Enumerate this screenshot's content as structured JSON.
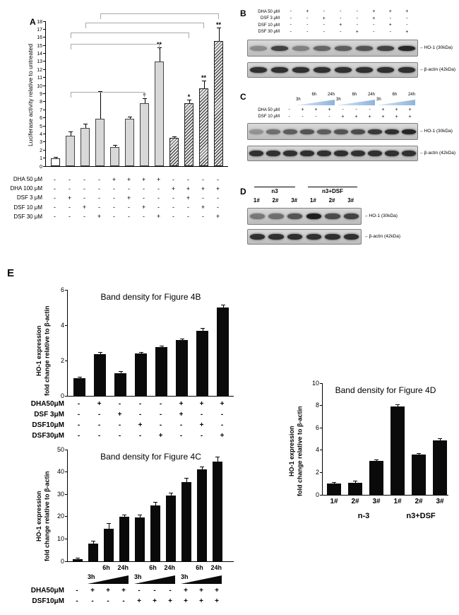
{
  "figure": {
    "panel_a": {
      "label": "A",
      "ylabel": "Luciferase activity relative to untreated",
      "chart": {
        "type": "bar",
        "ylim": [
          0,
          18
        ],
        "yticks": [
          0,
          1,
          2,
          3,
          4,
          5,
          6,
          7,
          8,
          9,
          10,
          11,
          12,
          13,
          14,
          15,
          16,
          17,
          18
        ],
        "values": [
          1,
          3.8,
          4.7,
          5.9,
          2.4,
          5.9,
          7.8,
          13,
          3.5,
          7.8,
          9.7,
          15.5
        ],
        "errors": [
          0.08,
          0.45,
          0.5,
          3.3,
          0.15,
          0.2,
          0.5,
          1.7,
          0.12,
          0.4,
          0.8,
          1.6
        ],
        "sig": [
          "",
          "",
          "",
          "",
          "",
          "",
          "*",
          "**",
          "",
          "*",
          "**",
          "**"
        ],
        "styles": [
          "white",
          "gray",
          "gray",
          "gray",
          "gray",
          "gray",
          "gray",
          "gray",
          "hatch",
          "hatch",
          "hatch",
          "hatch"
        ],
        "brackets": [
          {
            "from": 1,
            "to": 6,
            "y": 9.2
          },
          {
            "from": 1,
            "to": 7,
            "y": 15.2
          },
          {
            "from": 1,
            "to": 9,
            "y": 16.6
          },
          {
            "from": 2,
            "to": 10,
            "y": 17.8
          },
          {
            "from": 3,
            "to": 11,
            "y": 19.0
          }
        ]
      },
      "matrix": {
        "rows": [
          {
            "label": "DHA 50 μM",
            "values": [
              "-",
              "-",
              "-",
              "-",
              "+",
              "+",
              "+",
              "+",
              "-",
              "-",
              "-",
              "-"
            ]
          },
          {
            "label": "DHA 100 μM",
            "values": [
              "-",
              "-",
              "-",
              "-",
              "-",
              "-",
              "-",
              "-",
              "+",
              "+",
              "+",
              "+"
            ]
          },
          {
            "label": "DSF 3 μM",
            "values": [
              "-",
              "+",
              "-",
              "-",
              "-",
              "+",
              "-",
              "-",
              "-",
              "+",
              "-",
              "-"
            ]
          },
          {
            "label": "DSF 10 μM",
            "values": [
              "-",
              "-",
              "+",
              "-",
              "-",
              "-",
              "+",
              "-",
              "-",
              "-",
              "+",
              "-"
            ]
          },
          {
            "label": "DSF 30 μM",
            "values": [
              "-",
              "-",
              "-",
              "+",
              "-",
              "-",
              "-",
              "+",
              "-",
              "-",
              "-",
              "+"
            ]
          }
        ]
      }
    },
    "panel_b": {
      "label": "B",
      "arrow": "←",
      "matrix": {
        "rows": [
          {
            "label": "DHA 50 μM",
            "values": [
              "-",
              "+",
              "-",
              "-",
              "-",
              "+",
              "+",
              "+"
            ]
          },
          {
            "label": "DSF 3 μM",
            "values": [
              "-",
              "-",
              "+",
              "-",
              "-",
              "+",
              "-",
              "-"
            ]
          },
          {
            "label": "DSF 10 μM",
            "values": [
              "-",
              "-",
              "-",
              "+",
              "-",
              "-",
              "+",
              "-"
            ]
          },
          {
            "label": "DSF 30 μM",
            "values": [
              "-",
              "-",
              "-",
              "-",
              "+",
              "-",
              "-",
              "+"
            ]
          }
        ]
      },
      "blots": [
        {
          "name": "HO-1",
          "label": "HO-1 (30kDa)",
          "intensities": [
            0.35,
            0.75,
            0.4,
            0.55,
            0.6,
            0.65,
            0.75,
            0.9
          ]
        },
        {
          "name": "beta-actin",
          "label": "β-actin (42kDa)",
          "intensities": [
            0.85,
            0.85,
            0.85,
            0.85,
            0.85,
            0.85,
            0.85,
            0.85
          ]
        }
      ]
    },
    "panel_c": {
      "label": "C",
      "arrow": "←",
      "times": [
        "3h",
        "6h",
        "24h"
      ],
      "matrix": {
        "rows": [
          {
            "label": "DHA 50 μM",
            "values": [
              "-",
              "+",
              "+",
              "+",
              "-",
              "-",
              "-",
              "+",
              "+",
              "+"
            ]
          },
          {
            "label": "DSF 10 μM",
            "values": [
              "-",
              "-",
              "-",
              "-",
              "+",
              "+",
              "+",
              "+",
              "+",
              "+"
            ]
          }
        ]
      },
      "blots": [
        {
          "name": "HO-1",
          "label": "HO-1 (30kDa)",
          "intensities": [
            0.3,
            0.5,
            0.6,
            0.65,
            0.6,
            0.65,
            0.7,
            0.8,
            0.85,
            0.9
          ]
        },
        {
          "name": "beta-actin",
          "label": "β-actin (42kDa)",
          "intensities": [
            0.85,
            0.85,
            0.85,
            0.85,
            0.85,
            0.85,
            0.85,
            0.85,
            0.85,
            0.85
          ]
        }
      ]
    },
    "panel_d": {
      "label": "D",
      "arrow": "←",
      "groups": [
        "n3",
        "n3+DSF"
      ],
      "lanes": [
        "1#",
        "2#",
        "3#",
        "1#",
        "2#",
        "3#"
      ],
      "blots": [
        {
          "name": "HO-1",
          "label": "HO-1 (30kDa)",
          "intensities": [
            0.45,
            0.5,
            0.65,
            0.95,
            0.7,
            0.75
          ]
        },
        {
          "name": "beta-actin",
          "label": "β-actin (42kDa)",
          "intensities": [
            0.85,
            0.85,
            0.85,
            0.85,
            0.85,
            0.85
          ]
        }
      ]
    },
    "panel_e": {
      "label": "E",
      "chart_4b": {
        "type": "bar",
        "title": "Band density for Figure 4B",
        "ylabel": "HO-1 expression\nfold change relative to β-actin",
        "ylim": [
          0,
          6
        ],
        "yticks": [
          0,
          2,
          4,
          6
        ],
        "values": [
          1,
          2.35,
          1.3,
          2.4,
          2.75,
          3.15,
          3.7,
          5
        ],
        "errors": [
          0.03,
          0.1,
          0.05,
          0.05,
          0.07,
          0.07,
          0.12,
          0.13
        ],
        "matrix": {
          "rows": [
            {
              "label": "DHA50μM",
              "values": [
                "-",
                "+",
                "-",
                "-",
                "-",
                "+",
                "+",
                "+"
              ]
            },
            {
              "label": "DSF 3μM",
              "values": [
                "-",
                "-",
                "+",
                "-",
                "-",
                "+",
                "-",
                "-"
              ]
            },
            {
              "label": "DSF10μM",
              "values": [
                "-",
                "-",
                "-",
                "+",
                "-",
                "-",
                "+",
                "-"
              ]
            },
            {
              "label": "DSF30μM",
              "values": [
                "-",
                "-",
                "-",
                "-",
                "+",
                "-",
                "-",
                "+"
              ]
            }
          ]
        }
      },
      "chart_4c": {
        "type": "bar",
        "title": "Band density for Figure 4C",
        "ylabel": "HO-1 expression\nfold change relative to β-actin",
        "ylim": [
          0,
          50
        ],
        "yticks": [
          0,
          10,
          20,
          30,
          40,
          50
        ],
        "values": [
          1,
          8,
          14.5,
          20,
          19.5,
          25,
          29.5,
          35.5,
          41,
          44.5
        ],
        "errors": [
          0.2,
          0.9,
          2.3,
          0.7,
          1.1,
          1.4,
          1,
          1.6,
          1.2,
          2
        ],
        "times": [
          "3h",
          "6h",
          "24h"
        ],
        "matrix": {
          "rows": [
            {
              "label": "DHA50μM",
              "values": [
                "-",
                "+",
                "+",
                "+",
                "-",
                "-",
                "-",
                "+",
                "+",
                "+"
              ]
            },
            {
              "label": "DSF10μM",
              "values": [
                "-",
                "-",
                "-",
                "-",
                "+",
                "+",
                "+",
                "+",
                "+",
                "+"
              ]
            }
          ]
        }
      },
      "chart_4d": {
        "type": "bar",
        "title": "Band density for Figure 4D",
        "ylabel": "HO-1 expression\nfold change relative to β-actin",
        "ylim": [
          0,
          10
        ],
        "yticks": [
          0,
          2,
          4,
          6,
          8,
          10
        ],
        "values": [
          1,
          1.1,
          3.05,
          7.9,
          3.6,
          4.9
        ],
        "errors": [
          0.05,
          0.1,
          0.07,
          0.15,
          0.1,
          0.08
        ],
        "xlabels": [
          "1#",
          "2#",
          "3#",
          "1#",
          "2#",
          "3#"
        ],
        "groups": [
          "n-3",
          "n3+DSF"
        ]
      }
    }
  }
}
